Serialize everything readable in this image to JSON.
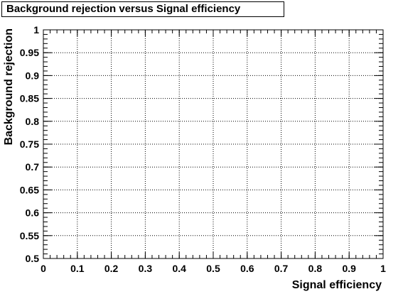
{
  "chart_data": {
    "type": "line",
    "title": "Background rejection versus Signal efficiency",
    "xlabel": "Signal efficiency",
    "ylabel": "Background rejection",
    "xlim": [
      0,
      1
    ],
    "ylim": [
      0.5,
      1
    ],
    "xticks": [
      "0",
      "0.1",
      "0.2",
      "0.3",
      "0.4",
      "0.5",
      "0.6",
      "0.7",
      "0.8",
      "0.9",
      "1"
    ],
    "yticks": [
      "0.5",
      "0.55",
      "0.6",
      "0.65",
      "0.7",
      "0.75",
      "0.8",
      "0.85",
      "0.9",
      "0.95",
      "1"
    ],
    "grid": true,
    "series": []
  }
}
